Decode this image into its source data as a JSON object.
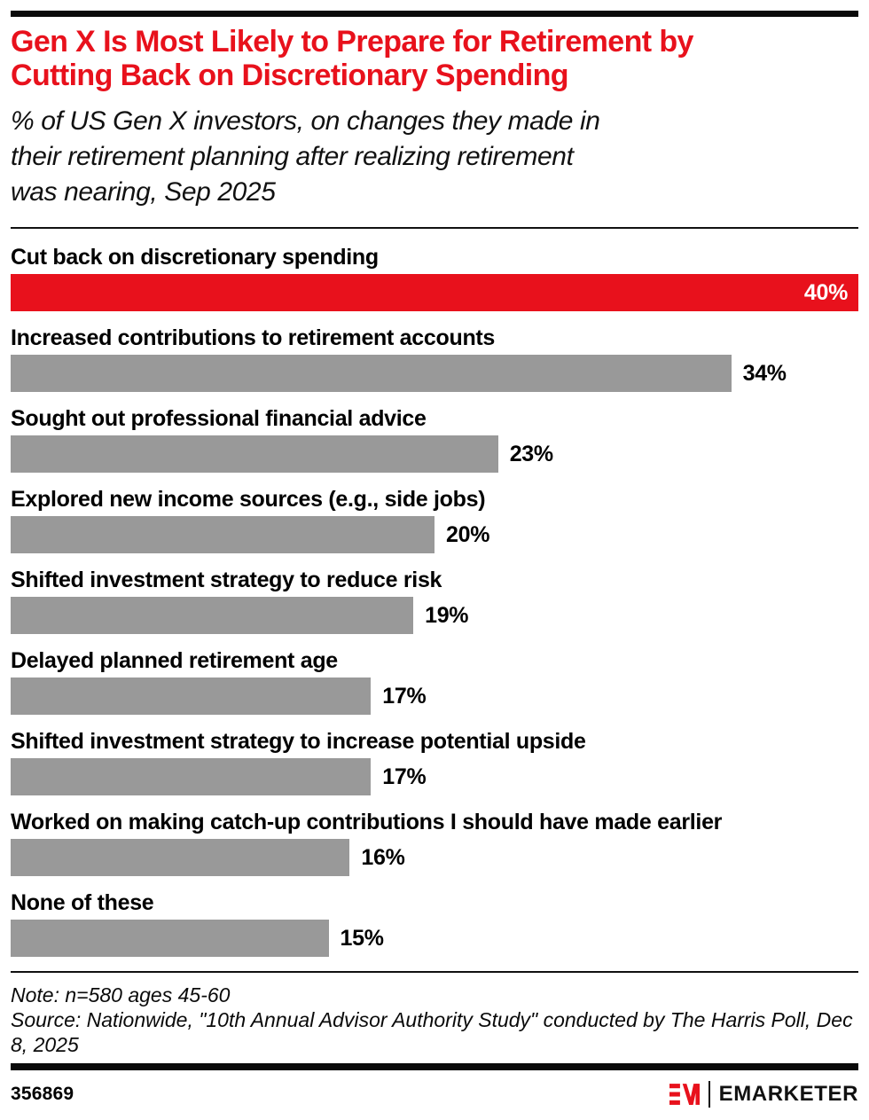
{
  "header": {
    "title_lines": [
      "Gen X Is Most Likely to Prepare for Retirement by",
      "Cutting Back on Discretionary Spending"
    ],
    "subtitle_lines": [
      "% of US Gen X investors, on changes they made in",
      "their retirement planning after realizing retirement",
      "was nearing, Sep 2025"
    ]
  },
  "chart_data": {
    "type": "bar",
    "orientation": "horizontal",
    "categories": [
      "Cut back on discretionary spending",
      "Increased contributions to retirement accounts",
      "Sought out professional financial advice",
      "Explored new income sources (e.g., side jobs)",
      "Shifted investment strategy to reduce risk",
      "Delayed planned retirement age",
      "Shifted investment strategy to increase potential upside",
      "Worked on making catch-up contributions I should have made earlier",
      "None of these"
    ],
    "values": [
      40,
      34,
      23,
      20,
      19,
      17,
      17,
      16,
      15
    ],
    "value_suffix": "%",
    "xmax": 40,
    "highlight_index": 0,
    "colors": {
      "highlight": "#e8111c",
      "default": "#999999"
    },
    "title": "Gen X Is Most Likely to Prepare for Retirement by Cutting Back on Discretionary Spending",
    "xlabel": "",
    "ylabel": "",
    "grid": false,
    "legend": false
  },
  "footer": {
    "note": "Note: n=580 ages 45-60",
    "source": "Source: Nationwide, \"10th Annual Advisor Authority Study\" conducted by The Harris Poll, Dec 8, 2025",
    "chart_id": "356869",
    "brand": "EMARKETER",
    "logo_icon": "emarketer-em-monogram",
    "brand_color": "#e8111c"
  }
}
